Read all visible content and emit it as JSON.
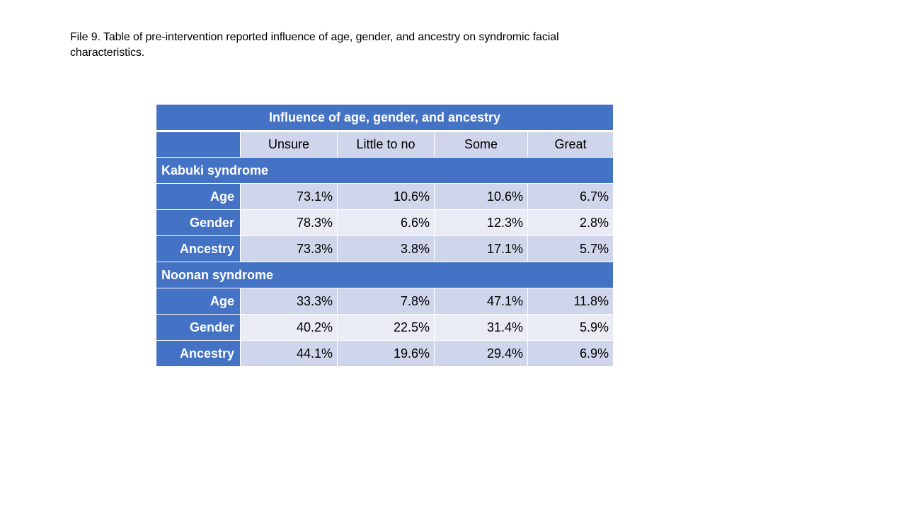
{
  "caption": "File 9. Table of pre-intervention reported influence of age, gender, and ancestry on syndromic facial characteristics.",
  "table": {
    "title": "Influence of age, gender, and ancestry",
    "columns": [
      "Unsure",
      "Little to no",
      "Some",
      "Great"
    ],
    "sections": [
      {
        "name": "Kabuki syndrome",
        "rows": [
          {
            "label": "Age",
            "values": [
              "73.1%",
              "10.6%",
              "10.6%",
              "6.7%"
            ]
          },
          {
            "label": "Gender",
            "values": [
              "78.3%",
              "6.6%",
              "12.3%",
              "2.8%"
            ]
          },
          {
            "label": "Ancestry",
            "values": [
              "73.3%",
              "3.8%",
              "17.1%",
              "5.7%"
            ]
          }
        ]
      },
      {
        "name": "Noonan syndrome",
        "rows": [
          {
            "label": "Age",
            "values": [
              "33.3%",
              "7.8%",
              "47.1%",
              "11.8%"
            ]
          },
          {
            "label": "Gender",
            "values": [
              "40.2%",
              "22.5%",
              "31.4%",
              "5.9%"
            ]
          },
          {
            "label": "Ancestry",
            "values": [
              "44.1%",
              "19.6%",
              "29.4%",
              "6.9%"
            ]
          }
        ]
      }
    ]
  },
  "colors": {
    "header_blue": "#4472c4",
    "band_dark": "#cfd5ea",
    "band_light": "#e9ebf5"
  }
}
